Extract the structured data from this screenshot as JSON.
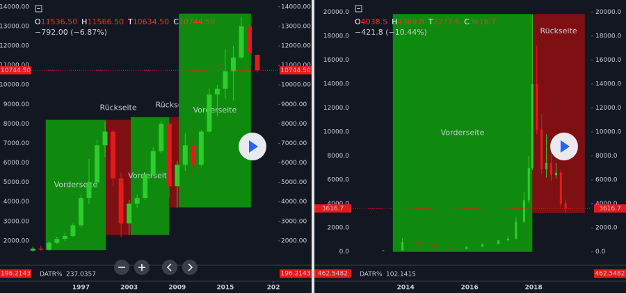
{
  "chart_data": [
    {
      "type": "candlestick",
      "legend": [
        {
          "key": "O",
          "value": 11536.5,
          "label": "11536.50"
        },
        {
          "key": "H",
          "value": 11566.5,
          "label": "11566.50"
        },
        {
          "key": "T",
          "value": 10634.5,
          "label": "10634.50"
        },
        {
          "key": "C",
          "value": 10744.5,
          "label": "10744.50"
        }
      ],
      "change_label": "−792.00 (−6.87%)",
      "last_price": {
        "value": 10744.5,
        "label": "10744.50"
      },
      "x": [
        1991,
        1992,
        1993,
        1994,
        1995,
        1996,
        1997,
        1998,
        1999,
        2000,
        2001,
        2002,
        2003,
        2004,
        2005,
        2006,
        2007,
        2008,
        2009,
        2010,
        2011,
        2012,
        2013,
        2014,
        2015,
        2016,
        2017,
        2018,
        2019
      ],
      "open": [
        1500,
        1600,
        1550,
        1900,
        2100,
        2250,
        2800,
        4200,
        5000,
        6900,
        7600,
        5200,
        2900,
        3900,
        4200,
        5400,
        6600,
        8000,
        4800,
        5900,
        6900,
        5900,
        7600,
        9500,
        9800,
        10700,
        11400,
        13000,
        11536.5
      ],
      "high": [
        1700,
        1750,
        2000,
        2200,
        2400,
        2900,
        4400,
        6200,
        7200,
        8100,
        7700,
        5500,
        4100,
        4400,
        5500,
        6800,
        8150,
        8100,
        6100,
        7500,
        7600,
        7700,
        9800,
        10000,
        11800,
        12000,
        13500,
        13600,
        11566.5
      ],
      "low": [
        1450,
        1500,
        1500,
        1850,
        2000,
        2200,
        2700,
        3900,
        4800,
        6300,
        4800,
        2200,
        2300,
        3700,
        4100,
        5300,
        6500,
        4200,
        3700,
        5600,
        5100,
        5800,
        7500,
        8400,
        9300,
        9200,
        11300,
        11300,
        10634.5
      ],
      "close": [
        1600,
        1550,
        1900,
        2100,
        2250,
        2800,
        4200,
        5000,
        6900,
        7600,
        5200,
        2900,
        3900,
        4200,
        5400,
        6600,
        8000,
        4800,
        5900,
        6900,
        5900,
        7600,
        9500,
        9800,
        10700,
        11400,
        13000,
        11600,
        10744.5
      ],
      "up_color": "#2ecc2e",
      "down_color": "#e8191b",
      "zones": [
        {
          "label": "Vorderseite",
          "x0": 1992.6,
          "x1": 2000.1,
          "y0": 1527,
          "y1": 8205,
          "color": "#0f8a0f",
          "label_color": "#ffffff"
        },
        {
          "label": "Rückseite",
          "x0": 2000.1,
          "x1": 2003.2,
          "y0": 2304,
          "y1": 8205,
          "color": "#7e1014",
          "label_color": "#ff2a2a"
        },
        {
          "label": "Vorderseite",
          "x0": 2003.2,
          "x1": 2008.0,
          "y0": 2304,
          "y1": 8346,
          "color": "#0f8a0f",
          "label_color": "#ffffff"
        },
        {
          "label": "Rückseite",
          "x0": 2008.0,
          "x1": 2009.2,
          "y0": 3717,
          "y1": 8346,
          "color": "#7e1014",
          "label_color": "#ff2a2a"
        },
        {
          "label": "Vorderseite",
          "x0": 2009.2,
          "x1": 2018.2,
          "y0": 3717,
          "y1": 13650,
          "color": "#0f8a0f",
          "label_color": "#ffffff"
        }
      ],
      "xlim": [
        1990.8,
        2021.6
      ],
      "xticks": [
        1997,
        2003,
        2009,
        2015,
        {
          "value": 2021,
          "label": "202"
        }
      ],
      "ylim": [
        1000,
        14350
      ],
      "yticks": [
        {
          "value": 2000,
          "label": "2000.00"
        },
        {
          "value": 3000,
          "label": "3000.00"
        },
        {
          "value": 4000,
          "label": "4000.00"
        },
        {
          "value": 5000,
          "label": "5000.00"
        },
        {
          "value": 6000,
          "label": "6000.00"
        },
        {
          "value": 7000,
          "label": "7000.00"
        },
        {
          "value": 8000,
          "label": "8000.00"
        },
        {
          "value": 9000,
          "label": "9000.00"
        },
        {
          "value": 10000,
          "label": "10000.00"
        },
        {
          "value": 11000,
          "label": "11000.00"
        },
        {
          "value": 12000,
          "label": "12000.00"
        },
        {
          "value": 13000,
          "label": "13000.00"
        },
        {
          "value": 14000,
          "label": "14000.00"
        }
      ],
      "indicator": {
        "name": "DATR%",
        "value": 237.0357,
        "axis_value": 196.2143
      }
    },
    {
      "type": "candlestick",
      "legend": [
        {
          "key": "O",
          "value": 4038.5,
          "label": "4038.5"
        },
        {
          "key": "H",
          "value": 4369.8,
          "label": "4369.8"
        },
        {
          "key": "T",
          "value": 3277.6,
          "label": "3277.6"
        },
        {
          "key": "C",
          "value": 3616.7,
          "label": "3616.7"
        }
      ],
      "change_label": "−421.8 (−10.44%)",
      "last_price": {
        "value": 3616.7,
        "label": "3616.7"
      },
      "x": [
        2013.3,
        2013.9,
        2014.4,
        2014.9,
        2015.4,
        2015.9,
        2016.4,
        2016.9,
        2017.2,
        2017.45,
        2017.7,
        2017.85,
        2017.96,
        2018.1,
        2018.25,
        2018.4,
        2018.55,
        2018.7,
        2018.85,
        2019.0
      ],
      "open": [
        100,
        120,
        800,
        600,
        320,
        240,
        430,
        650,
        960,
        1100,
        2500,
        4300,
        7000,
        14000,
        10200,
        6900,
        7400,
        6400,
        6600,
        4038.5
      ],
      "high": [
        140,
        1150,
        850,
        650,
        330,
        460,
        700,
        1000,
        1300,
        2900,
        5000,
        8000,
        19800,
        17200,
        11500,
        9800,
        8400,
        7400,
        6800,
        4369.8
      ],
      "low": [
        90,
        110,
        550,
        300,
        210,
        230,
        420,
        740,
        900,
        1050,
        2400,
        4100,
        6800,
        9800,
        6500,
        6200,
        5900,
        6100,
        3700,
        3277.6
      ],
      "close": [
        120,
        800,
        600,
        320,
        240,
        430,
        650,
        960,
        1100,
        2500,
        4300,
        7000,
        14000,
        10200,
        6900,
        7400,
        6400,
        6600,
        4000,
        3616.7
      ],
      "up_color": "#2ecc2e",
      "down_color": "#e8191b",
      "zones": [
        {
          "label": "Vorderseite",
          "x0": 2013.6,
          "x1": 2017.96,
          "y0": 0,
          "y1": 19830,
          "color": "#0f8a0f",
          "label_color": "#ffffff"
        },
        {
          "label": "Rückseite",
          "x0": 2017.96,
          "x1": 2019.6,
          "y0": 3240,
          "y1": 19830,
          "color": "#7e1014",
          "label_color": "#ff2a2a"
        }
      ],
      "xlim": [
        2012.3,
        2019.8
      ],
      "xticks": [
        2014,
        2016,
        2018
      ],
      "ylim": [
        -1000,
        21000
      ],
      "yticks": [
        {
          "value": 0,
          "label": "0.0"
        },
        {
          "value": 2000,
          "label": "2000.0"
        },
        {
          "value": 4000,
          "label": "4000.0"
        },
        {
          "value": 6000,
          "label": "6000.0"
        },
        {
          "value": 8000,
          "label": "8000.0"
        },
        {
          "value": 10000,
          "label": "10000.0"
        },
        {
          "value": 12000,
          "label": "12000.0"
        },
        {
          "value": 14000,
          "label": "14000.0"
        },
        {
          "value": 16000,
          "label": "16000.0"
        },
        {
          "value": 18000,
          "label": "18000.0"
        },
        {
          "value": 20000,
          "label": "20000.0"
        }
      ],
      "indicator": {
        "name": "DATR%",
        "value": 102.1415,
        "axis_value": 462.5482
      }
    }
  ]
}
